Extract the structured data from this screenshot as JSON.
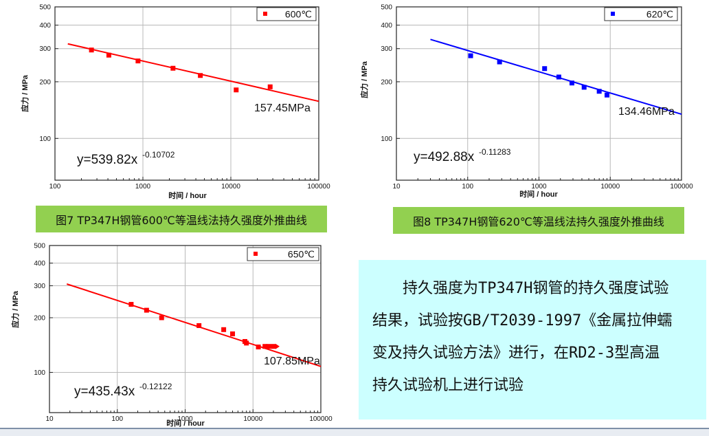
{
  "chart_data": [
    {
      "type": "scatter",
      "x_scale": "log",
      "y_scale": "log",
      "xlim": [
        100,
        100000
      ],
      "ylim": [
        60,
        500
      ],
      "x_ticks": [
        "100",
        "1000",
        "10000",
        "100000"
      ],
      "y_ticks": [
        "100",
        "200",
        "300",
        "400",
        "500"
      ],
      "xlabel": "时间 / hour",
      "ylabel": "应力 / MPa",
      "legend": "600℃",
      "series": [
        {
          "name": "600℃",
          "color": "#ff0000",
          "x": [
            260,
            410,
            880,
            2200,
            4500,
            11500,
            28000
          ],
          "y": [
            295,
            277,
            258,
            236,
            216,
            181,
            188
          ]
        }
      ],
      "fit": {
        "coef": 539.82,
        "exp": -0.10702,
        "x_from": 140,
        "x_to": 100000
      },
      "equation_text": "y=539.82x",
      "equation_exp": "-0.10702",
      "extrapolated_label": "157.45MPa",
      "grid": true
    },
    {
      "type": "scatter",
      "x_scale": "log",
      "y_scale": "log",
      "xlim": [
        10,
        100000
      ],
      "ylim": [
        60,
        500
      ],
      "x_ticks": [
        "10",
        "100",
        "1000",
        "10000",
        "100000"
      ],
      "y_ticks": [
        "100",
        "200",
        "300",
        "400",
        "500"
      ],
      "xlabel": "时间 / hour",
      "ylabel": "应力 / MPa",
      "legend": "620℃",
      "series": [
        {
          "name": "620℃",
          "color": "#0000ff",
          "x": [
            110,
            280,
            1200,
            1900,
            2900,
            4300,
            7000,
            9000
          ],
          "y": [
            275,
            255,
            235,
            212,
            197,
            187,
            178,
            170
          ]
        }
      ],
      "fit": {
        "coef": 492.88,
        "exp": -0.11283,
        "x_from": 30,
        "x_to": 100000
      },
      "equation_text": "y=492.88x",
      "equation_exp": "-0.11283",
      "extrapolated_label": "134.46MPa",
      "grid": true
    },
    {
      "type": "scatter",
      "x_scale": "log",
      "y_scale": "log",
      "xlim": [
        10,
        100000
      ],
      "ylim": [
        60,
        500
      ],
      "x_ticks": [
        "10",
        "100",
        "1000",
        "10000",
        "100000"
      ],
      "y_ticks": [
        "100",
        "200",
        "300",
        "400",
        "500"
      ],
      "xlabel": "时间 / hour",
      "ylabel": "应力 / MPa",
      "legend": "650℃",
      "series": [
        {
          "name": "650℃",
          "color": "#ff0000",
          "x": [
            160,
            270,
            450,
            1600,
            3700,
            5000,
            7600,
            8000,
            12000,
            15000,
            17000,
            20000
          ],
          "y": [
            237,
            220,
            200,
            181,
            172,
            163,
            148,
            145,
            138,
            139,
            139,
            139
          ]
        }
      ],
      "fit": {
        "coef": 435.43,
        "exp": -0.12122,
        "x_from": 18,
        "x_to": 100000
      },
      "equation_text": "y=435.43x",
      "equation_exp": "-0.12122",
      "extrapolated_label": "107.85MPa",
      "grid": true
    }
  ],
  "captions": {
    "fig7": "图7 TP347H钢管600℃等温线法持久强度外推曲线",
    "fig8": "图8 TP347H钢管620℃等温线法持久强度外推曲线"
  },
  "textbox": {
    "line1": "持久强度为TP347H钢管的持久强度试验",
    "line2": "结果，试验按GB/T2039-1997《金属拉伸蠕",
    "line3": "变及持久试验方法》进行，在RD2-3型高温",
    "line4": "持久试验机上进行试验"
  }
}
